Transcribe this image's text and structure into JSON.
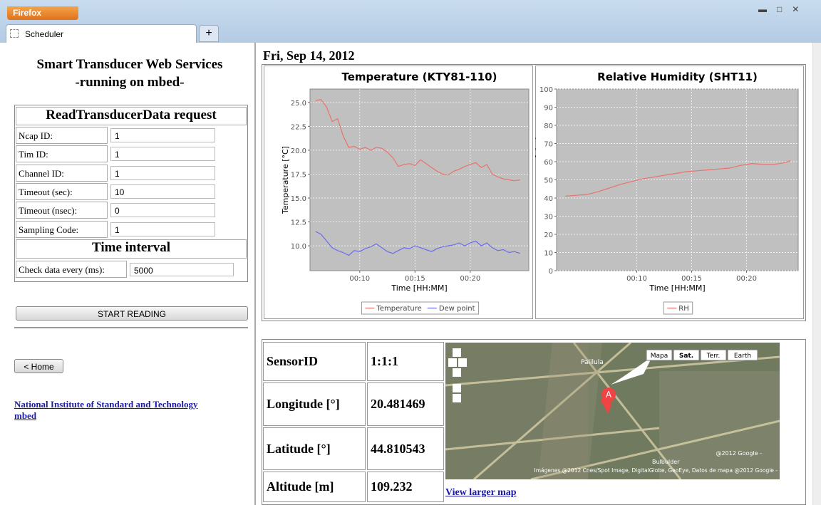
{
  "browser": {
    "menu_button": "Firefox",
    "tab": "Scheduler",
    "new_tab": "+"
  },
  "sidebar": {
    "title": "Smart Transducer Web Services",
    "subtitle": "-running on mbed-",
    "form_title": "ReadTransducerData request",
    "fields": [
      {
        "label": "Ncap ID:",
        "value": 1
      },
      {
        "label": "Tim ID:",
        "value": 1
      },
      {
        "label": "Channel ID:",
        "value": 1
      },
      {
        "label": "Timeout (sec):",
        "value": 10
      },
      {
        "label": "Timeout (nsec):",
        "value": 0
      },
      {
        "label": "Sampling Code:",
        "value": 1
      }
    ],
    "interval_title": "Time interval",
    "interval": {
      "label": "Check data every (ms):",
      "value": 5000
    },
    "start_button": "START READING",
    "home_button": "< Home",
    "links": [
      "National Institute of Standard and Technology",
      "mbed"
    ]
  },
  "main": {
    "date": "Fri, Sep 14, 2012",
    "location": [
      {
        "label": "SensorID",
        "value": "1:1:1"
      },
      {
        "label": "Longitude [°]",
        "value": 20.481469
      },
      {
        "label": "Latitude [°]",
        "value": 44.810543
      },
      {
        "label": "Altitude [m]",
        "value": 109.232
      }
    ],
    "map": {
      "controls": [
        "Mapa",
        "Sat.",
        "Terr.",
        "Earth"
      ],
      "marker": "A",
      "places": [
        "Palilula",
        "Bulbulder"
      ],
      "copyright": "@2012 Google -",
      "attribution": "Imágenes @2012 Cnes/Spot Image, DigitalGlobe, GeoEye, Datos de mapa @2012 Google -",
      "link": "View larger map"
    }
  },
  "chart_data": [
    {
      "type": "line",
      "title": "Temperature (KTY81-110)",
      "xlabel": "Time [HH:MM]",
      "ylabel": "Temperature [°C]",
      "x": [
        6.0,
        6.5,
        7.0,
        7.5,
        8.0,
        8.5,
        9.0,
        9.5,
        10.0,
        10.5,
        11.0,
        11.5,
        12.0,
        12.5,
        13.0,
        13.5,
        14.0,
        14.5,
        15.0,
        15.5,
        16.0,
        16.5,
        17.0,
        17.5,
        18.0,
        18.5,
        19.0,
        19.5,
        20.0,
        20.5,
        21.0,
        21.5,
        22.0,
        22.5,
        23.0,
        23.5,
        24.0,
        24.5
      ],
      "series": [
        {
          "name": "Temperature",
          "color": "#e8736c",
          "values": [
            25.2,
            25.3,
            24.5,
            23.0,
            23.3,
            21.5,
            20.3,
            20.4,
            20.1,
            20.3,
            20.0,
            20.3,
            20.2,
            19.8,
            19.2,
            18.3,
            18.5,
            18.6,
            18.4,
            19.0,
            18.6,
            18.2,
            17.8,
            17.5,
            17.4,
            17.8,
            18.0,
            18.3,
            18.5,
            18.7,
            18.2,
            18.5,
            17.5,
            17.2,
            17.0,
            16.9,
            16.8,
            16.9
          ]
        },
        {
          "name": "Dew point",
          "color": "#6b6bf0",
          "values": [
            11.5,
            11.2,
            10.5,
            9.8,
            9.5,
            9.3,
            9.0,
            9.5,
            9.4,
            9.7,
            9.9,
            10.2,
            9.8,
            9.4,
            9.2,
            9.5,
            9.8,
            9.7,
            10.0,
            9.8,
            9.6,
            9.4,
            9.7,
            9.9,
            10.0,
            10.1,
            10.3,
            10.0,
            10.3,
            10.5,
            10.0,
            10.3,
            9.8,
            9.5,
            9.6,
            9.3,
            9.4,
            9.2
          ]
        }
      ],
      "xlim": [
        5.5,
        25.3
      ],
      "ylim": [
        7.4,
        26.4
      ],
      "xticks": [
        {
          "value": 10,
          "label": "00:10"
        },
        {
          "value": 15,
          "label": "00:15"
        },
        {
          "value": 20,
          "label": "00:20"
        }
      ],
      "yticks": [
        {
          "value": 10,
          "label": "10.0"
        },
        {
          "value": 12.5,
          "label": "12.5"
        },
        {
          "value": 15,
          "label": "15.0"
        },
        {
          "value": 17.5,
          "label": "17.5"
        },
        {
          "value": 20,
          "label": "20.0"
        },
        {
          "value": 22.5,
          "label": "22.5"
        },
        {
          "value": 25,
          "label": "25.0"
        }
      ],
      "grid": true,
      "legend": "bottom"
    },
    {
      "type": "line",
      "title": "Relative Humidity (SHT11)",
      "xlabel": "Time [HH:MM]",
      "ylabel": "Relative Humidity [%]",
      "x": [
        3.5,
        4.5,
        5.5,
        6.5,
        7.5,
        8.5,
        9.5,
        10.5,
        11.5,
        12.5,
        13.5,
        14.5,
        15.5,
        16.5,
        17.5,
        18.5,
        19.5,
        20.5,
        21.5,
        22.5,
        23.5,
        24.0
      ],
      "series": [
        {
          "name": "RH",
          "color": "#e8736c",
          "values": [
            41,
            41.5,
            42,
            43.5,
            45.5,
            47.5,
            49,
            50.5,
            51.5,
            52.5,
            53.5,
            54.5,
            55,
            55.5,
            56,
            56.5,
            58,
            59,
            58.5,
            58.5,
            59.5,
            60.5
          ]
        }
      ],
      "xlim": [
        2.7,
        24.7
      ],
      "ylim": [
        0,
        100
      ],
      "xticks": [
        {
          "value": 10,
          "label": "00:10"
        },
        {
          "value": 15,
          "label": "00:15"
        },
        {
          "value": 20,
          "label": "00:20"
        }
      ],
      "yticks": [
        0,
        10,
        20,
        30,
        40,
        50,
        60,
        70,
        80,
        90,
        100
      ],
      "grid": true,
      "legend": "bottom"
    }
  ]
}
